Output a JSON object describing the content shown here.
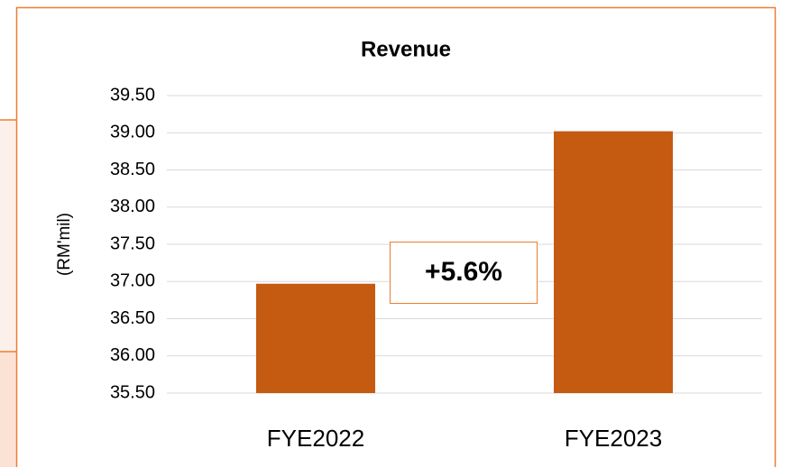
{
  "chart_data": {
    "type": "bar",
    "title": "Revenue",
    "y_label": "(RM'mil)",
    "categories": [
      "FYE2022",
      "FYE2023"
    ],
    "values": [
      36.97,
      39.02
    ],
    "color": "#c55a11",
    "ylim": [
      35.5,
      39.5
    ],
    "yticks": [
      {
        "value": 35.5,
        "label": "35.50"
      },
      {
        "value": 36,
        "label": "36.00"
      },
      {
        "value": 36.5,
        "label": "36.50"
      },
      {
        "value": 37,
        "label": "37.00"
      },
      {
        "value": 37.5,
        "label": "37.50"
      },
      {
        "value": 38,
        "label": "38.00"
      },
      {
        "value": 38.5,
        "label": "38.50"
      },
      {
        "value": 39,
        "label": "39.00"
      },
      {
        "value": 39.5,
        "label": "39.50"
      }
    ],
    "grid": true,
    "annotation": "+5.6%"
  }
}
